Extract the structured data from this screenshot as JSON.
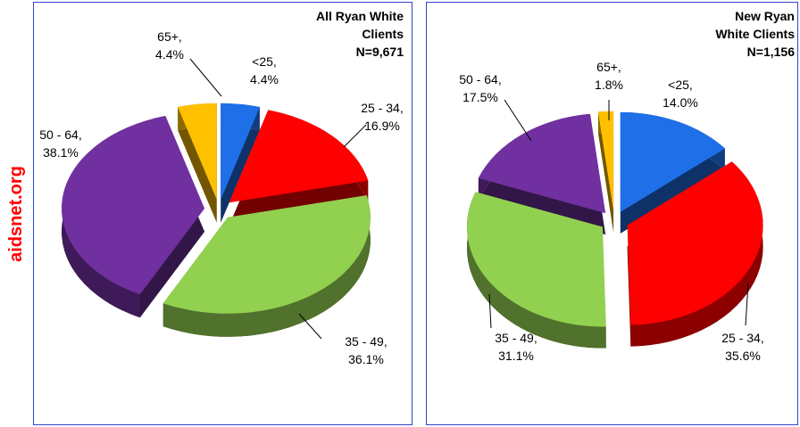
{
  "watermark": "aidsnet.org",
  "chart_data": [
    {
      "type": "pie",
      "title": "All Ryan White Clients",
      "subtitle": "N=9,671",
      "categories": [
        "<25,",
        "25 - 34,",
        "35 - 49,",
        "50 - 64,",
        "65+,"
      ],
      "values": [
        4.4,
        16.9,
        36.1,
        38.1,
        4.4
      ],
      "value_labels": [
        "4.4%",
        "16.9%",
        "36.1%",
        "38.1%",
        "4.4%"
      ],
      "colors": [
        "#1f6fe8",
        "#ff0000",
        "#92d050",
        "#7030a0",
        "#ffc000"
      ]
    },
    {
      "type": "pie",
      "title": "New Ryan White Clients",
      "subtitle": "N=1,156",
      "categories": [
        "<25,",
        "25 - 34,",
        "35 - 49,",
        "50 - 64,",
        "65+,"
      ],
      "values": [
        14.0,
        35.6,
        31.1,
        17.5,
        1.8
      ],
      "value_labels": [
        "14.0%",
        "35.6%",
        "31.1%",
        "17.5%",
        "1.8%"
      ],
      "colors": [
        "#1f6fe8",
        "#ff0000",
        "#92d050",
        "#7030a0",
        "#ffc000"
      ]
    }
  ]
}
